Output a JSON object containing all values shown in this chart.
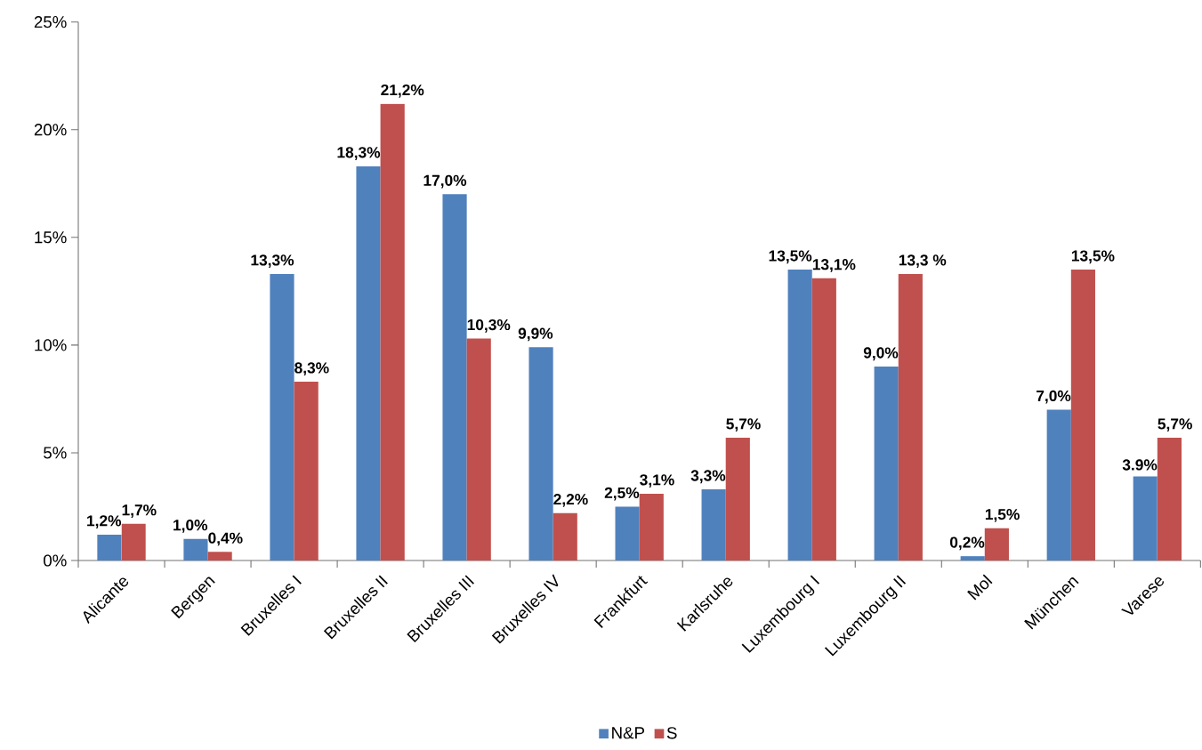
{
  "chart_data": {
    "type": "bar",
    "categories": [
      "Alicante",
      "Bergen",
      "Bruxelles I",
      "Bruxelles II",
      "Bruxelles III",
      "Bruxelles IV",
      "Frankfurt",
      "Karlsruhe",
      "Luxembourg I",
      "Luxembourg II",
      "Mol",
      "München",
      "Varese"
    ],
    "series": [
      {
        "name": "N&P",
        "color": "#4f81bd",
        "values": [
          1.2,
          1.0,
          13.3,
          18.3,
          17.0,
          9.9,
          2.5,
          3.3,
          13.5,
          9.0,
          0.2,
          7.0,
          3.9
        ],
        "value_labels": [
          "1,2%",
          "1,0%",
          "13,3%",
          "18,3%",
          "17,0%",
          "9,9%",
          "2,5%",
          "3,3%",
          "13,5%",
          "9,0%",
          "0,2%",
          "7,0%",
          "3.9%"
        ]
      },
      {
        "name": "S",
        "color": "#c0504d",
        "values": [
          1.7,
          0.4,
          8.3,
          21.2,
          10.3,
          2.2,
          3.1,
          5.7,
          13.1,
          13.3,
          1.5,
          13.5,
          5.7
        ],
        "value_labels": [
          "1,7%",
          "0,4%",
          "8,3%",
          "21,2%",
          "10,3%",
          "2,2%",
          "3,1%",
          "5,7%",
          "13,1%",
          "13,3 %",
          "1,5%",
          "13,5%",
          "5,7%"
        ]
      }
    ],
    "ylim": [
      0,
      25
    ],
    "yticks": [
      {
        "value": 0,
        "label": "0%"
      },
      {
        "value": 5,
        "label": "5%"
      },
      {
        "value": 10,
        "label": "10%"
      },
      {
        "value": 15,
        "label": "15%"
      },
      {
        "value": 20,
        "label": "20%"
      },
      {
        "value": 25,
        "label": "25%"
      }
    ],
    "legend": "bottom"
  }
}
